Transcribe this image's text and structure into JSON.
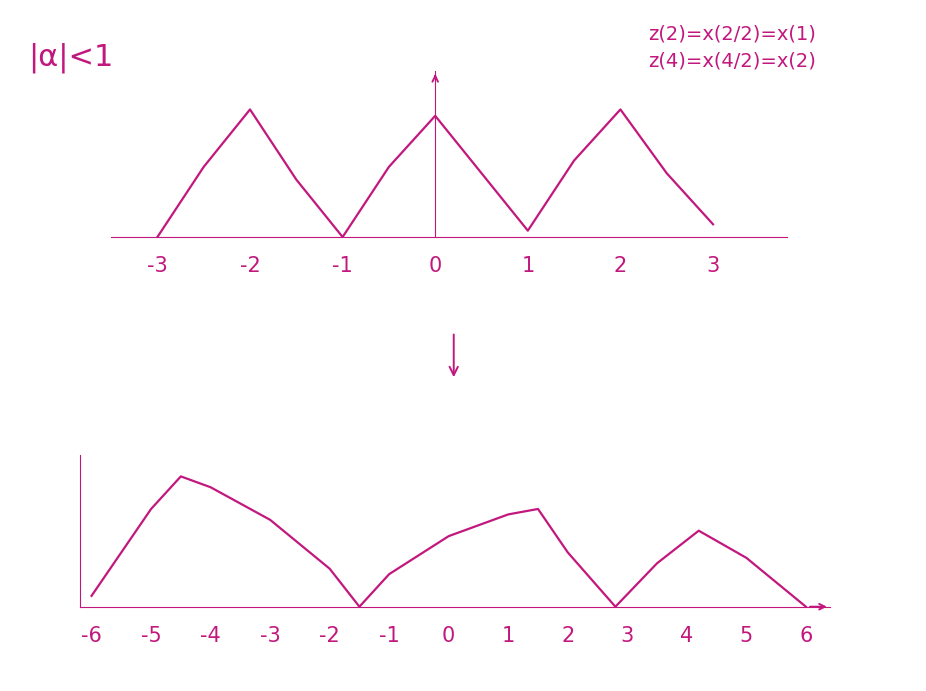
{
  "chart_data": [
    {
      "type": "line",
      "annotations": [
        "|α|<1",
        "z(2)=x(2/2)=x(1)",
        "z(4)=x(4/2)=x(2)"
      ],
      "x": [
        -3,
        -2.5,
        -2,
        -1.5,
        -1,
        -0.5,
        0,
        0.5,
        1,
        1.5,
        2,
        2.5,
        3
      ],
      "values": [
        0,
        0.55,
        1,
        0.45,
        0,
        0.55,
        0.95,
        0.5,
        0.05,
        0.6,
        1,
        0.5,
        0.1
      ],
      "xlim": [
        -3.5,
        3.8
      ],
      "xticks": [
        -3,
        -2,
        -1,
        0,
        1,
        2,
        3
      ],
      "ylim": [
        0,
        1.3
      ],
      "tick_labels": "x",
      "color": "#c2187e"
    },
    {
      "type": "line",
      "x": [
        -6,
        -5,
        -4.5,
        -4,
        -3,
        -2,
        -1.5,
        -1,
        0,
        1,
        1.5,
        2,
        2.8,
        3.5,
        4.2,
        5,
        6
      ],
      "values": [
        0.1,
        0.9,
        1.2,
        1.1,
        0.8,
        0.35,
        0,
        0.3,
        0.65,
        0.85,
        0.9,
        0.5,
        0,
        0.4,
        0.7,
        0.45,
        0
      ],
      "xlim": [
        -6.2,
        6.4
      ],
      "xticks": [
        -6,
        -5,
        -4,
        -3,
        -2,
        -1,
        0,
        1,
        2,
        3,
        4,
        5,
        6
      ],
      "ylim": [
        0,
        1.4
      ],
      "tick_labels": "x",
      "color": "#c2187e"
    }
  ]
}
